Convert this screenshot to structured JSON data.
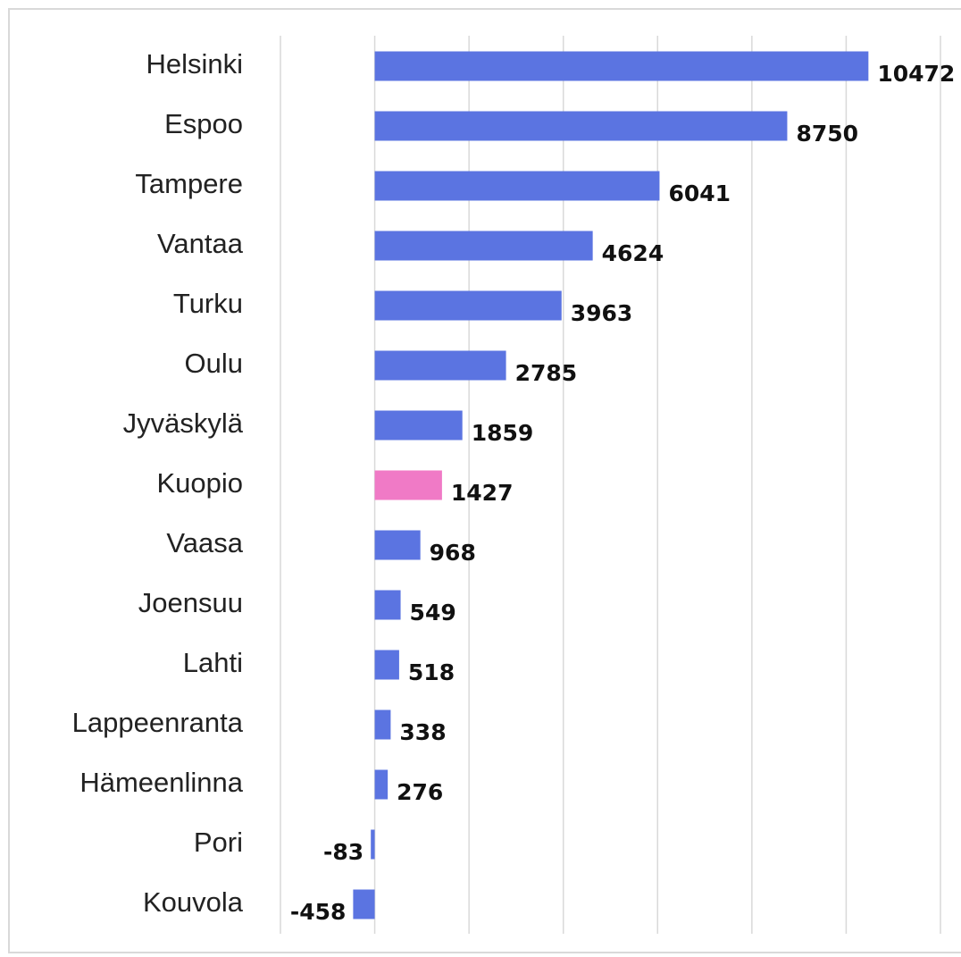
{
  "chart_data": {
    "type": "barh",
    "categories": [
      "Helsinki",
      "Espoo",
      "Tampere",
      "Vantaa",
      "Turku",
      "Oulu",
      "Jyväskylä",
      "Kuopio",
      "Vaasa",
      "Joensuu",
      "Lahti",
      "Lappeenranta",
      "Hämeenlinna",
      "Pori",
      "Kouvola"
    ],
    "values": [
      10472,
      8750,
      6041,
      4624,
      3963,
      2785,
      1859,
      1427,
      968,
      549,
      518,
      338,
      276,
      -83,
      -458
    ],
    "colors": [
      "#5b74e1",
      "#5b74e1",
      "#5b74e1",
      "#5b74e1",
      "#5b74e1",
      "#5b74e1",
      "#5b74e1",
      "#f07ac6",
      "#5b74e1",
      "#5b74e1",
      "#5b74e1",
      "#5b74e1",
      "#5b74e1",
      "#5b74e1",
      "#5b74e1"
    ],
    "xlim": [
      -2000,
      12000
    ],
    "xticks": [
      -2000,
      0,
      2000,
      4000,
      6000,
      8000,
      10000,
      12000
    ],
    "grid": true
  }
}
